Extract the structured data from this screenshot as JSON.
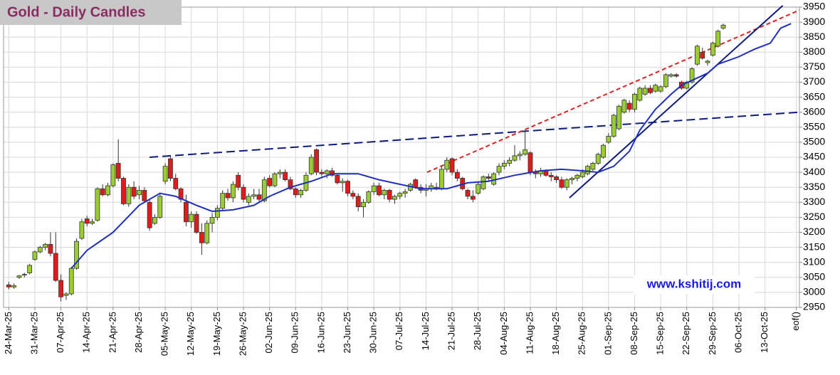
{
  "chart_data": {
    "type": "candlestick",
    "title": "Gold - Daily Candles",
    "watermark": "www.kshitij.com",
    "xlim": [
      -1,
      151.6
    ],
    "ylim": [
      2950,
      3950
    ],
    "yticks": [
      2950,
      3000,
      3050,
      3100,
      3150,
      3200,
      3250,
      3300,
      3350,
      3400,
      3450,
      3500,
      3550,
      3600,
      3650,
      3700,
      3750,
      3800,
      3850,
      3900,
      3950
    ],
    "xticks": [
      {
        "value": 0,
        "label": "24-Mar-25"
      },
      {
        "value": 5,
        "label": "31-Mar-25"
      },
      {
        "value": 10,
        "label": "07-Apr-25"
      },
      {
        "value": 15,
        "label": "14-Apr-25"
      },
      {
        "value": 20,
        "label": "21-Apr-25"
      },
      {
        "value": 25,
        "label": "28-Apr-25"
      },
      {
        "value": 30,
        "label": "05-May-25"
      },
      {
        "value": 35,
        "label": "12-May-25"
      },
      {
        "value": 40,
        "label": "19-May-25"
      },
      {
        "value": 45,
        "label": "26-May-25"
      },
      {
        "value": 50,
        "label": "02-Jun-25"
      },
      {
        "value": 55,
        "label": "09-Jun-25"
      },
      {
        "value": 60,
        "label": "16-Jun-25"
      },
      {
        "value": 65,
        "label": "23-Jun-25"
      },
      {
        "value": 70,
        "label": "30-Jun-25"
      },
      {
        "value": 75,
        "label": "07-Jul-25"
      },
      {
        "value": 80,
        "label": "14-Jul-25"
      },
      {
        "value": 85,
        "label": "21-Jul-25"
      },
      {
        "value": 90,
        "label": "28-Jul-25"
      },
      {
        "value": 95,
        "label": "04-Aug-25"
      },
      {
        "value": 100,
        "label": "11-Aug-25"
      },
      {
        "value": 105,
        "label": "18-Aug-25"
      },
      {
        "value": 110,
        "label": "25-Aug-25"
      },
      {
        "value": 115,
        "label": "01-Sep-25"
      },
      {
        "value": 120,
        "label": "08-Sep-25"
      },
      {
        "value": 125,
        "label": "15-Sep-25"
      },
      {
        "value": 130,
        "label": "22-Sep-25"
      },
      {
        "value": 135,
        "label": "29-Sep-25"
      },
      {
        "value": 140,
        "label": "06-Oct-25"
      },
      {
        "value": 145,
        "label": "13-Oct-25"
      },
      {
        "value": 151,
        "label": "eof()"
      }
    ],
    "grid": true,
    "up_color": "#9acd32",
    "down_color": "#e31a1a",
    "open": [
      3025,
      3018,
      3050,
      3058,
      3065,
      3110,
      3135,
      3150,
      3160,
      3130,
      3040,
      2990,
      2995,
      3080,
      3180,
      3245,
      3230,
      3240,
      3345,
      3325,
      3355,
      3430,
      3380,
      3295,
      3350,
      3325,
      3340,
      3300,
      3230,
      3250,
      3370,
      3445,
      3380,
      3345,
      3300,
      3235,
      3260,
      3200,
      3165,
      3230,
      3250,
      3280,
      3330,
      3315,
      3390,
      3350,
      3300,
      3320,
      3325,
      3305,
      3380,
      3355,
      3395,
      3400,
      3375,
      3345,
      3325,
      3340,
      3395,
      3475,
      3400,
      3395,
      3405,
      3390,
      3365,
      3370,
      3330,
      3320,
      3285,
      3300,
      3335,
      3355,
      3325,
      3340,
      3310,
      3320,
      3330,
      3340,
      3375,
      3350,
      3340,
      3345,
      3350,
      3345,
      3410,
      3445,
      3400,
      3380,
      3340,
      3320,
      3330,
      3345,
      3385,
      3360,
      3400,
      3420,
      3430,
      3440,
      3455,
      3460,
      3465,
      3400,
      3395,
      3405,
      3390,
      3385,
      3375,
      3350,
      3375,
      3380,
      3385,
      3395,
      3410,
      3430,
      3450,
      3500,
      3520,
      3545,
      3600,
      3630,
      3610,
      3640,
      3660,
      3680,
      3670,
      3670,
      3685,
      3720,
      3725,
      3700,
      3680,
      3700,
      3760,
      3800,
      3765,
      3790,
      3820,
      3880
    ],
    "high": [
      3035,
      3030,
      3058,
      3065,
      3095,
      3140,
      3155,
      3165,
      3200,
      3200,
      3060,
      3000,
      3085,
      3180,
      3245,
      3255,
      3245,
      3350,
      3360,
      3365,
      3430,
      3510,
      3385,
      3360,
      3370,
      3355,
      3350,
      3310,
      3260,
      3330,
      3430,
      3455,
      3395,
      3350,
      3325,
      3270,
      3270,
      3230,
      3240,
      3265,
      3290,
      3340,
      3345,
      3370,
      3400,
      3360,
      3330,
      3345,
      3345,
      3385,
      3390,
      3400,
      3410,
      3410,
      3385,
      3350,
      3345,
      3400,
      3460,
      3480,
      3410,
      3410,
      3415,
      3395,
      3380,
      3375,
      3340,
      3330,
      3310,
      3340,
      3365,
      3365,
      3345,
      3345,
      3325,
      3335,
      3345,
      3365,
      3380,
      3360,
      3360,
      3365,
      3365,
      3420,
      3450,
      3450,
      3410,
      3385,
      3345,
      3340,
      3370,
      3390,
      3395,
      3400,
      3430,
      3440,
      3450,
      3490,
      3470,
      3535,
      3470,
      3410,
      3415,
      3410,
      3400,
      3390,
      3385,
      3380,
      3385,
      3395,
      3410,
      3425,
      3435,
      3465,
      3495,
      3530,
      3595,
      3625,
      3645,
      3640,
      3665,
      3685,
      3690,
      3690,
      3695,
      3690,
      3730,
      3730,
      3730,
      3705,
      3705,
      3750,
      3825,
      3815,
      3775,
      3835,
      3875,
      3895
    ],
    "low": [
      3010,
      3012,
      3045,
      3050,
      3060,
      3105,
      3130,
      3140,
      3120,
      3035,
      2970,
      2975,
      2990,
      3075,
      3175,
      3220,
      3225,
      3235,
      3320,
      3320,
      3350,
      3370,
      3290,
      3285,
      3310,
      3310,
      3300,
      3205,
      3225,
      3245,
      3360,
      3370,
      3340,
      3300,
      3220,
      3215,
      3195,
      3125,
      3160,
      3200,
      3240,
      3275,
      3305,
      3300,
      3340,
      3300,
      3290,
      3310,
      3300,
      3300,
      3350,
      3350,
      3380,
      3370,
      3340,
      3315,
      3315,
      3335,
      3390,
      3390,
      3385,
      3380,
      3385,
      3360,
      3335,
      3320,
      3310,
      3270,
      3250,
      3295,
      3325,
      3320,
      3310,
      3300,
      3295,
      3310,
      3315,
      3335,
      3345,
      3330,
      3320,
      3335,
      3340,
      3340,
      3400,
      3390,
      3370,
      3340,
      3310,
      3300,
      3325,
      3340,
      3370,
      3355,
      3390,
      3410,
      3420,
      3435,
      3440,
      3455,
      3390,
      3380,
      3385,
      3385,
      3370,
      3365,
      3345,
      3340,
      3360,
      3370,
      3380,
      3390,
      3405,
      3425,
      3445,
      3495,
      3515,
      3540,
      3595,
      3600,
      3600,
      3635,
      3655,
      3660,
      3665,
      3665,
      3680,
      3715,
      3715,
      3675,
      3675,
      3695,
      3755,
      3775,
      3755,
      3785,
      3815,
      3875
    ],
    "close": [
      3018,
      3022,
      3055,
      3060,
      3090,
      3135,
      3150,
      3160,
      3130,
      3040,
      2985,
      2995,
      3080,
      3170,
      3235,
      3230,
      3235,
      3345,
      3325,
      3355,
      3425,
      3380,
      3295,
      3350,
      3320,
      3340,
      3305,
      3215,
      3250,
      3320,
      3420,
      3380,
      3345,
      3310,
      3235,
      3260,
      3200,
      3165,
      3230,
      3250,
      3280,
      3330,
      3315,
      3360,
      3350,
      3310,
      3320,
      3325,
      3310,
      3375,
      3355,
      3395,
      3400,
      3375,
      3345,
      3325,
      3340,
      3390,
      3450,
      3400,
      3395,
      3405,
      3390,
      3365,
      3370,
      3330,
      3320,
      3285,
      3300,
      3335,
      3355,
      3325,
      3340,
      3310,
      3320,
      3330,
      3335,
      3360,
      3350,
      3340,
      3345,
      3355,
      3345,
      3410,
      3440,
      3400,
      3380,
      3345,
      3320,
      3310,
      3360,
      3385,
      3380,
      3395,
      3420,
      3430,
      3440,
      3455,
      3460,
      3475,
      3400,
      3395,
      3405,
      3390,
      3385,
      3375,
      3350,
      3375,
      3380,
      3390,
      3400,
      3420,
      3430,
      3460,
      3490,
      3520,
      3590,
      3620,
      3640,
      3610,
      3660,
      3680,
      3680,
      3665,
      3690,
      3685,
      3725,
      3725,
      3720,
      3680,
      3700,
      3745,
      3820,
      3780,
      3770,
      3830,
      3870,
      3890
    ],
    "moving_average": {
      "color": "#1f2fbf",
      "x": [
        12,
        15,
        20,
        25,
        29,
        32,
        36,
        39,
        43,
        47,
        50,
        54,
        58,
        62,
        67,
        71,
        75,
        79,
        84,
        88,
        92,
        97,
        102,
        106,
        110,
        113,
        116,
        119,
        121,
        124,
        127,
        129,
        134,
        136,
        140,
        143,
        146,
        148,
        150
      ],
      "values": [
        3080,
        3140,
        3200,
        3290,
        3330,
        3320,
        3290,
        3270,
        3275,
        3290,
        3320,
        3350,
        3370,
        3395,
        3395,
        3375,
        3360,
        3345,
        3345,
        3365,
        3370,
        3390,
        3405,
        3410,
        3405,
        3400,
        3420,
        3470,
        3540,
        3610,
        3660,
        3690,
        3730,
        3760,
        3785,
        3810,
        3830,
        3880,
        3895
      ]
    },
    "trendlines": [
      {
        "color": "#0d1a80",
        "dash": "12 6",
        "x": [
          27,
          151.6
        ],
        "values": [
          3450,
          3600
        ]
      },
      {
        "color": "#dd2222",
        "dash": "6 4",
        "x": [
          80.2,
          151.6
        ],
        "values": [
          3400,
          3940
        ]
      },
      {
        "color": "#0d1a80",
        "dash": "none",
        "x": [
          107.5,
          148.4
        ],
        "values": [
          3315,
          3955
        ]
      }
    ]
  }
}
